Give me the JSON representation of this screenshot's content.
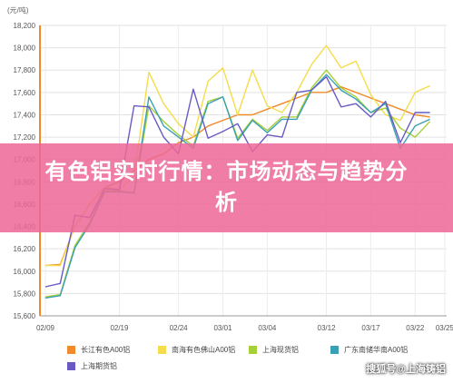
{
  "chart_data": {
    "type": "line",
    "unit_label": "(元/吨)",
    "yticks": [
      "18,200",
      "18,000",
      "17,800",
      "17,600",
      "17,400",
      "17,200",
      "17,000",
      "16,800",
      "16,600",
      "16,400",
      "16,200",
      "16,000",
      "15,800",
      "15,600"
    ],
    "ylim": [
      15600,
      18200
    ],
    "xticks": [
      "02/09",
      "02/19",
      "02/24",
      "03/01",
      "03/04",
      "03/12",
      "03/17",
      "03/22",
      "03/25"
    ],
    "x_count": 27,
    "xtick_indices": [
      0,
      5,
      9,
      12,
      15,
      19,
      22,
      25,
      27
    ],
    "grid": true,
    "legend_position": "bottom",
    "series": [
      {
        "name": "长江有色A00铝",
        "color": "#f08a2a",
        "values": [
          16050,
          16060,
          16400,
          16600,
          16750,
          16800,
          16900,
          17000,
          17050,
          17150,
          17200,
          17300,
          17350,
          17400,
          17400,
          17450,
          17500,
          17550,
          17600,
          17600,
          17650,
          17600,
          17550,
          17500,
          17450,
          17400,
          17380
        ]
      },
      {
        "name": "南海有色佛山A00铝",
        "color": "#f5dc4a",
        "values": [
          16050,
          16050,
          16400,
          16600,
          16750,
          16730,
          16850,
          17780,
          17500,
          17320,
          17200,
          17700,
          17820,
          17400,
          17800,
          17480,
          17420,
          17600,
          17850,
          18020,
          17820,
          17880,
          17580,
          17400,
          17350,
          17600,
          17660
        ]
      },
      {
        "name": "上海现货铝",
        "color": "#a6cf3a",
        "values": [
          15770,
          15790,
          16230,
          16440,
          16720,
          16720,
          16700,
          17480,
          17340,
          17220,
          17120,
          17520,
          17560,
          17190,
          17360,
          17260,
          17380,
          17380,
          17640,
          17800,
          17640,
          17560,
          17420,
          17460,
          17280,
          17200,
          17340
        ]
      },
      {
        "name": "广东南储华南A00铝",
        "color": "#3aa0b5",
        "values": [
          15760,
          15780,
          16210,
          16420,
          16710,
          16710,
          16700,
          17560,
          17300,
          17200,
          17100,
          17500,
          17560,
          17170,
          17350,
          17240,
          17360,
          17360,
          17620,
          17760,
          17620,
          17540,
          17420,
          17500,
          17100,
          17300,
          17360
        ]
      },
      {
        "name": "上海期货铝",
        "color": "#6a5bc4",
        "values": [
          15860,
          15890,
          16500,
          16480,
          16740,
          16730,
          17480,
          17470,
          17200,
          17050,
          17630,
          17190,
          17250,
          17320,
          17070,
          17220,
          17200,
          17600,
          17620,
          17740,
          17470,
          17500,
          17380,
          17520,
          17150,
          17420,
          17420
        ]
      }
    ]
  },
  "banner": {
    "title": "有色铝实时行情：市场动态与趋势分析"
  },
  "watermark": "搜狐号@上海铸铝"
}
